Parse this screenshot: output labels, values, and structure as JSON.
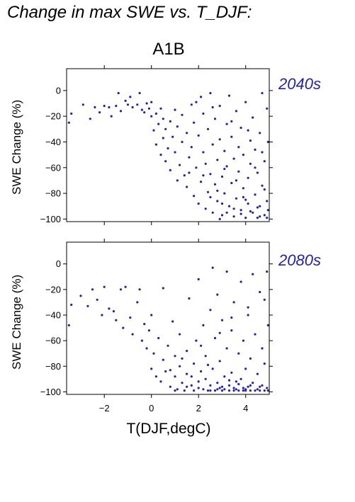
{
  "figure_title": "Change in max SWE vs. T_DJF:",
  "scenario_title": "A1B",
  "x_axis_label": "T(DJF,degC)",
  "colors": {
    "points": "#2222aa",
    "period_label": "#2222aa",
    "axes": "#000000"
  },
  "chart_data": [
    {
      "type": "scatter",
      "period_label": "2040s",
      "ylabel": "SWE Change (%)",
      "xlim": [
        -3.6,
        5.0
      ],
      "ylim": [
        -102,
        17
      ],
      "xticks": [
        -2,
        0,
        2,
        4
      ],
      "xtick_labels": [
        "−2",
        "0",
        "2",
        "4"
      ],
      "yticks": [
        0,
        -20,
        -40,
        -60,
        -80,
        -100
      ],
      "ytick_labels": [
        "0",
        "−20",
        "−40",
        "−60",
        "−80",
        "−100"
      ],
      "points": [
        [
          -3.5,
          -25
        ],
        [
          -3.4,
          -18
        ],
        [
          -2.9,
          -11
        ],
        [
          -2.6,
          -22
        ],
        [
          -2.4,
          -13
        ],
        [
          -2.2,
          -17
        ],
        [
          -2.0,
          -12
        ],
        [
          -1.8,
          -13
        ],
        [
          -1.7,
          -20
        ],
        [
          -1.5,
          -12
        ],
        [
          -1.4,
          -2
        ],
        [
          -1.3,
          -16
        ],
        [
          -1.1,
          -8
        ],
        [
          -1.0,
          -11
        ],
        [
          -0.9,
          -5
        ],
        [
          -0.8,
          -13
        ],
        [
          -0.6,
          -11
        ],
        [
          -0.5,
          -2
        ],
        [
          -0.4,
          -15
        ],
        [
          -0.3,
          -17
        ],
        [
          -0.2,
          -10
        ],
        [
          -0.1,
          -14
        ],
        [
          0.0,
          -20
        ],
        [
          0.0,
          -9
        ],
        [
          0.1,
          -31
        ],
        [
          0.2,
          -18
        ],
        [
          0.2,
          -42
        ],
        [
          0.3,
          -26
        ],
        [
          0.4,
          -14
        ],
        [
          0.4,
          -50
        ],
        [
          0.5,
          -37
        ],
        [
          0.5,
          -22
        ],
        [
          0.6,
          -30
        ],
        [
          0.6,
          -55
        ],
        [
          0.7,
          -45
        ],
        [
          0.8,
          -24
        ],
        [
          0.8,
          -62
        ],
        [
          0.9,
          -36
        ],
        [
          1.0,
          -15
        ],
        [
          1.0,
          -48
        ],
        [
          1.1,
          -70
        ],
        [
          1.1,
          -28
        ],
        [
          1.2,
          -58
        ],
        [
          1.3,
          -40
        ],
        [
          1.3,
          -19
        ],
        [
          1.4,
          -66
        ],
        [
          1.5,
          -33
        ],
        [
          1.5,
          -75
        ],
        [
          1.6,
          -52
        ],
        [
          1.7,
          -11
        ],
        [
          1.7,
          -44
        ],
        [
          1.8,
          -82
        ],
        [
          1.8,
          -25
        ],
        [
          1.9,
          -60
        ],
        [
          2.0,
          -35
        ],
        [
          2.0,
          -88
        ],
        [
          2.1,
          -5
        ],
        [
          2.1,
          -71
        ],
        [
          2.2,
          -48
        ],
        [
          2.2,
          -18
        ],
        [
          2.3,
          -92
        ],
        [
          2.3,
          -57
        ],
        [
          2.4,
          -30
        ],
        [
          2.4,
          -79
        ],
        [
          2.5,
          -2
        ],
        [
          2.5,
          -65
        ],
        [
          2.6,
          -42
        ],
        [
          2.6,
          -95
        ],
        [
          2.7,
          -22
        ],
        [
          2.7,
          -73
        ],
        [
          2.8,
          -54
        ],
        [
          2.8,
          -86
        ],
        [
          2.9,
          -12
        ],
        [
          2.9,
          -38
        ],
        [
          3.0,
          -67
        ],
        [
          3.0,
          -97
        ],
        [
          3.1,
          -47
        ],
        [
          3.1,
          -80
        ],
        [
          3.2,
          -26
        ],
        [
          3.2,
          -59
        ],
        [
          3.3,
          -90
        ],
        [
          3.3,
          -4
        ],
        [
          3.4,
          -36
        ],
        [
          3.4,
          -72
        ],
        [
          3.5,
          -53
        ],
        [
          3.5,
          -98
        ],
        [
          3.6,
          -16
        ],
        [
          3.6,
          -84
        ],
        [
          3.7,
          -44
        ],
        [
          3.7,
          -63
        ],
        [
          3.8,
          -93
        ],
        [
          3.8,
          -29
        ],
        [
          3.9,
          -76
        ],
        [
          3.9,
          -50
        ],
        [
          4.0,
          -99
        ],
        [
          4.0,
          -9
        ],
        [
          4.1,
          -68
        ],
        [
          4.1,
          -88
        ],
        [
          4.2,
          -39
        ],
        [
          4.2,
          -57
        ],
        [
          4.3,
          -95
        ],
        [
          4.3,
          -21
        ],
        [
          4.4,
          -81
        ],
        [
          4.4,
          -46
        ],
        [
          4.5,
          -99
        ],
        [
          4.5,
          -64
        ],
        [
          4.6,
          -33
        ],
        [
          4.6,
          -90
        ],
        [
          4.7,
          -74
        ],
        [
          4.7,
          -2
        ],
        [
          4.8,
          -97
        ],
        [
          4.8,
          -55
        ],
        [
          4.9,
          -86
        ],
        [
          4.9,
          -14
        ],
        [
          4.95,
          -93
        ],
        [
          4.95,
          -40
        ],
        [
          3.0,
          -88
        ],
        [
          2.5,
          -83
        ],
        [
          3.5,
          -92
        ],
        [
          4.0,
          -85
        ],
        [
          4.5,
          -91
        ],
        [
          3.8,
          -96
        ],
        [
          4.2,
          -94
        ],
        [
          4.6,
          -98
        ],
        [
          4.9,
          -99
        ],
        [
          3.2,
          -95
        ],
        [
          2.8,
          -78
        ],
        [
          3.6,
          -70
        ],
        [
          4.4,
          -60
        ],
        [
          1.9,
          -9
        ],
        [
          2.6,
          -13
        ],
        [
          3.4,
          -24
        ],
        [
          4.1,
          -31
        ],
        [
          4.7,
          -48
        ],
        [
          3.1,
          -61
        ],
        [
          3.9,
          -83
        ],
        [
          4.8,
          -77
        ],
        [
          2.2,
          -66
        ],
        [
          1.6,
          -64
        ],
        [
          2.9,
          -100
        ]
      ]
    },
    {
      "type": "scatter",
      "period_label": "2080s",
      "ylabel": "SWE Change (%)",
      "xlim": [
        -3.6,
        5.0
      ],
      "ylim": [
        -102,
        17
      ],
      "xticks": [
        -2,
        0,
        2,
        4
      ],
      "xtick_labels": [
        "−2",
        "0",
        "2",
        "4"
      ],
      "yticks": [
        0,
        -20,
        -40,
        -60,
        -80,
        -100
      ],
      "ytick_labels": [
        "0",
        "−20",
        "−40",
        "−60",
        "−80",
        "−100"
      ],
      "points": [
        [
          -3.5,
          -48
        ],
        [
          -3.4,
          -32
        ],
        [
          -3.0,
          -25
        ],
        [
          -2.7,
          -33
        ],
        [
          -2.5,
          -20
        ],
        [
          -2.3,
          -28
        ],
        [
          -2.1,
          -40
        ],
        [
          -2.0,
          -18
        ],
        [
          -1.8,
          -35
        ],
        [
          -1.6,
          -37
        ],
        [
          -1.5,
          -44
        ],
        [
          -1.3,
          -20
        ],
        [
          -1.2,
          -50
        ],
        [
          -1.1,
          -18
        ],
        [
          -0.9,
          -42
        ],
        [
          -0.8,
          -55
        ],
        [
          -0.6,
          -30
        ],
        [
          -0.5,
          -20
        ],
        [
          -0.4,
          -60
        ],
        [
          -0.3,
          -47
        ],
        [
          -0.2,
          -66
        ],
        [
          -0.1,
          -52
        ],
        [
          0.0,
          -82
        ],
        [
          0.0,
          -40
        ],
        [
          0.1,
          -70
        ],
        [
          0.2,
          -88
        ],
        [
          0.3,
          -58
        ],
        [
          0.4,
          -92
        ],
        [
          0.5,
          -75
        ],
        [
          0.5,
          -19
        ],
        [
          0.6,
          -84
        ],
        [
          0.7,
          -64
        ],
        [
          0.8,
          -96
        ],
        [
          0.9,
          -45
        ],
        [
          1.0,
          -88
        ],
        [
          1.0,
          -72
        ],
        [
          1.1,
          -98
        ],
        [
          1.2,
          -80
        ],
        [
          1.2,
          -55
        ],
        [
          1.3,
          -93
        ],
        [
          1.4,
          -99
        ],
        [
          1.5,
          -68
        ],
        [
          1.5,
          -86
        ],
        [
          1.6,
          -27
        ],
        [
          1.7,
          -95
        ],
        [
          1.8,
          -78
        ],
        [
          1.8,
          -99
        ],
        [
          1.9,
          -60
        ],
        [
          2.0,
          -92
        ],
        [
          2.0,
          -12
        ],
        [
          2.1,
          -84
        ],
        [
          2.2,
          -98
        ],
        [
          2.2,
          -48
        ],
        [
          2.3,
          -90
        ],
        [
          2.3,
          -72
        ],
        [
          2.4,
          -99
        ],
        [
          2.5,
          -36
        ],
        [
          2.5,
          -95
        ],
        [
          2.6,
          -3
        ],
        [
          2.6,
          -82
        ],
        [
          2.7,
          -99
        ],
        [
          2.7,
          -58
        ],
        [
          2.8,
          -93
        ],
        [
          2.8,
          -24
        ],
        [
          2.9,
          -97
        ],
        [
          2.9,
          -76
        ],
        [
          3.0,
          -99
        ],
        [
          3.0,
          -44
        ],
        [
          3.1,
          -88
        ],
        [
          3.1,
          -98
        ],
        [
          3.2,
          -6
        ],
        [
          3.2,
          -66
        ],
        [
          3.3,
          -95
        ],
        [
          3.3,
          -99
        ],
        [
          3.4,
          -52
        ],
        [
          3.4,
          -85
        ],
        [
          3.5,
          -99
        ],
        [
          3.5,
          -30
        ],
        [
          3.6,
          -92
        ],
        [
          3.6,
          -98
        ],
        [
          3.7,
          -70
        ],
        [
          3.7,
          -99
        ],
        [
          3.8,
          -14
        ],
        [
          3.8,
          -90
        ],
        [
          3.9,
          -97
        ],
        [
          3.9,
          -60
        ],
        [
          4.0,
          -99
        ],
        [
          4.0,
          -82
        ],
        [
          4.1,
          -40
        ],
        [
          4.1,
          -96
        ],
        [
          4.2,
          -99
        ],
        [
          4.2,
          -74
        ],
        [
          4.3,
          -8
        ],
        [
          4.3,
          -93
        ],
        [
          4.4,
          -99
        ],
        [
          4.4,
          -55
        ],
        [
          4.5,
          -98
        ],
        [
          4.5,
          -86
        ],
        [
          4.6,
          -99
        ],
        [
          4.6,
          -22
        ],
        [
          4.7,
          -95
        ],
        [
          4.7,
          -66
        ],
        [
          4.8,
          -99
        ],
        [
          4.8,
          -78
        ],
        [
          4.9,
          -97
        ],
        [
          4.9,
          -6
        ],
        [
          4.95,
          -99
        ],
        [
          4.95,
          -48
        ],
        [
          3.0,
          -96
        ],
        [
          3.5,
          -97
        ],
        [
          4.0,
          -98
        ],
        [
          2.5,
          -99
        ],
        [
          2.0,
          -97
        ],
        [
          1.5,
          -96
        ],
        [
          3.3,
          -91
        ],
        [
          3.7,
          -94
        ],
        [
          4.2,
          -95
        ],
        [
          4.6,
          -96
        ],
        [
          2.8,
          -98
        ],
        [
          3.9,
          -99
        ],
        [
          1.0,
          -99
        ],
        [
          0.8,
          -83
        ],
        [
          1.3,
          -74
        ],
        [
          2.1,
          -64
        ],
        [
          2.9,
          -54
        ],
        [
          3.4,
          -42
        ],
        [
          4.1,
          -34
        ],
        [
          4.8,
          -28
        ],
        [
          1.7,
          -88
        ],
        [
          2.4,
          -79
        ]
      ]
    }
  ]
}
